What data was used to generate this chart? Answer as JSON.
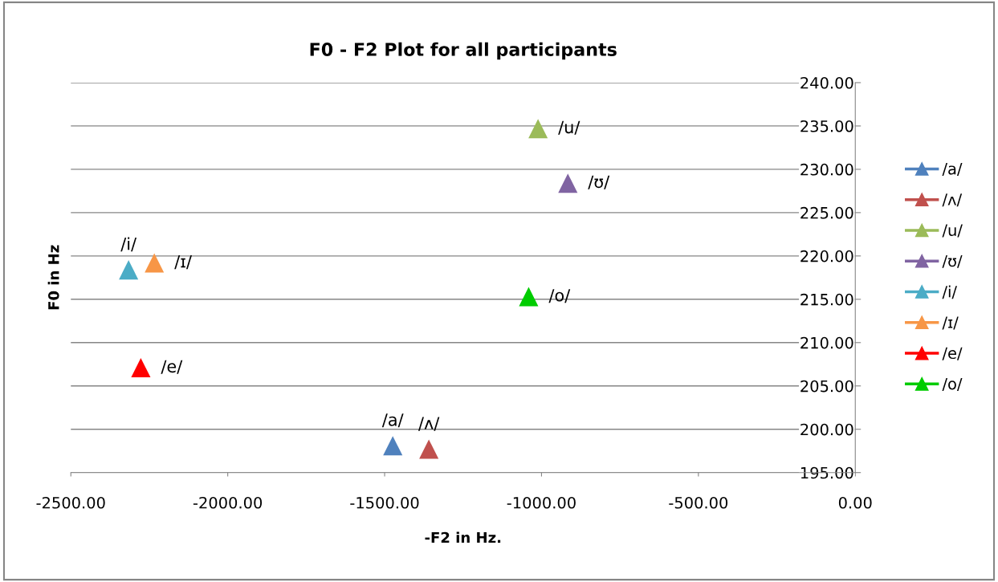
{
  "chart_data": {
    "type": "scatter",
    "title": "F0 - F2 Plot for all participants",
    "xlabel": "-F2 in Hz.",
    "ylabel": "F0 in Hz",
    "marker": "triangle",
    "grid": "y",
    "legend": "right",
    "xlim": [
      -2500,
      0
    ],
    "xticks": [
      {
        "value": -2500,
        "label": "-2500.00"
      },
      {
        "value": -2000,
        "label": "-2000.00"
      },
      {
        "value": -1500,
        "label": "-1500.00"
      },
      {
        "value": -1000,
        "label": "-1000.00"
      },
      {
        "value": -500,
        "label": "-500.00"
      },
      {
        "value": 0,
        "label": "0.00"
      }
    ],
    "ylim": [
      195,
      240
    ],
    "yticks": [
      {
        "value": 195,
        "label": "195.00"
      },
      {
        "value": 200,
        "label": "200.00"
      },
      {
        "value": 205,
        "label": "205.00"
      },
      {
        "value": 210,
        "label": "210.00"
      },
      {
        "value": 215,
        "label": "215.00"
      },
      {
        "value": 220,
        "label": "220.00"
      },
      {
        "value": 225,
        "label": "225.00"
      },
      {
        "value": 230,
        "label": "230.00"
      },
      {
        "value": 235,
        "label": "235.00"
      },
      {
        "value": 240,
        "label": "240.00"
      }
    ],
    "series": [
      {
        "name": "/a/",
        "color": "#4f81bd",
        "x": [
          -1474
        ],
        "values": [
          198.1
        ]
      },
      {
        "name": "/ʌ/",
        "color": "#c0504d",
        "x": [
          -1359
        ],
        "values": [
          197.7
        ]
      },
      {
        "name": "/u/",
        "color": "#9bbb59",
        "x": [
          -1011
        ],
        "values": [
          234.7
        ]
      },
      {
        "name": "/ʊ/",
        "color": "#8064a2",
        "x": [
          -916
        ],
        "values": [
          228.4
        ]
      },
      {
        "name": "/i/",
        "color": "#4bacc6",
        "x": [
          -2316
        ],
        "values": [
          218.4
        ]
      },
      {
        "name": "/ɪ/",
        "color": "#f79646",
        "x": [
          -2234
        ],
        "values": [
          219.2
        ]
      },
      {
        "name": "/e/",
        "color": "#ff0000",
        "x": [
          -2277
        ],
        "values": [
          207.1
        ]
      },
      {
        "name": "/o/",
        "color": "#00cc00",
        "x": [
          -1041
        ],
        "values": [
          215.3
        ]
      }
    ]
  }
}
